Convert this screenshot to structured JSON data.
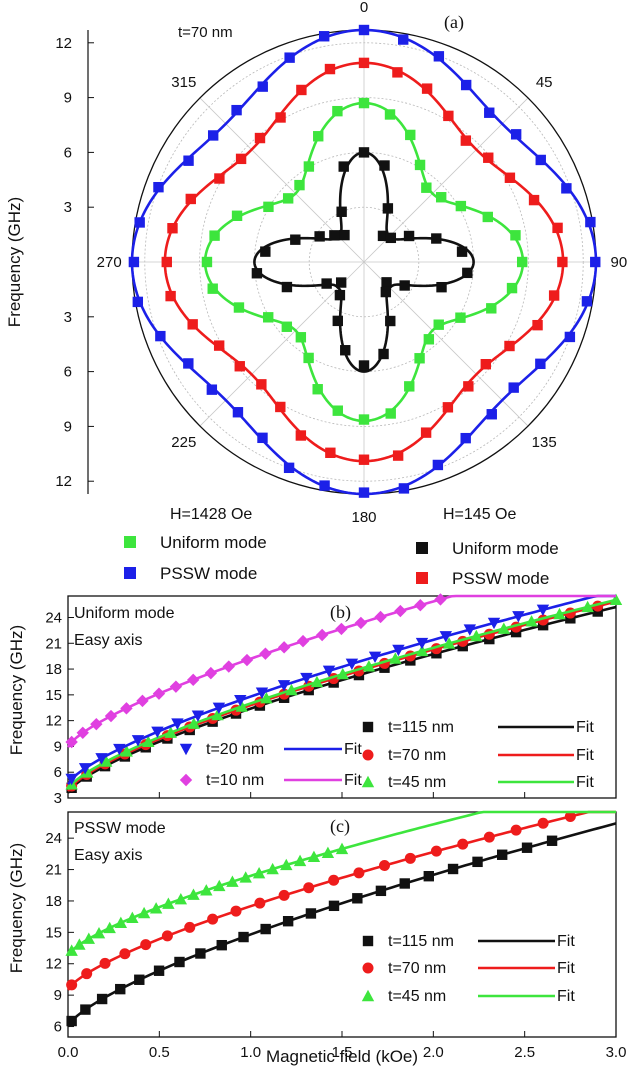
{
  "chart_data": [
    {
      "panel": "a",
      "type": "polar-scatter",
      "panel_label": "(a)",
      "ylabel": "Frequency (GHz)",
      "thickness_label": "t=70 nm",
      "angle_labels": [
        "0",
        "45",
        "90",
        "135",
        "180",
        "225",
        "270",
        "315"
      ],
      "radial_ticks": [
        "3",
        "6",
        "9",
        "12"
      ],
      "field_left": "H=1428 Oe",
      "field_right": "H=145 Oe",
      "rlim": [
        0,
        12.7
      ],
      "series": [
        {
          "name": "Uniform mode",
          "group": "left",
          "color": "#3de53d",
          "base": 7.0,
          "amp": 1.7,
          "harmonic": 4
        },
        {
          "name": "PSSW mode",
          "group": "left",
          "color": "#1c20e8",
          "base": 11.7,
          "amp": 1.0,
          "harmonic": 4
        },
        {
          "name": "Uniform mode",
          "group": "right",
          "color": "#111111",
          "lobe_max": 6.0,
          "lobe_min": 2.0,
          "harmonic": 4
        },
        {
          "name": "PSSW mode",
          "group": "right",
          "color": "#ee1c1c",
          "base": 9.8,
          "amp": 1.1,
          "harmonic": 4
        }
      ]
    },
    {
      "panel": "b",
      "type": "scatter",
      "panel_label": "(b)",
      "title_lines": [
        "Uniform mode",
        "Easy axis"
      ],
      "ylabel": "Frequency (GHz)",
      "xlim": [
        0,
        3.0
      ],
      "ylim": [
        3,
        26.5
      ],
      "yticks": [
        3,
        6,
        9,
        12,
        15,
        18,
        21,
        24
      ],
      "fit_label": "Fit",
      "series": [
        {
          "name": "t=115 nm",
          "marker": "square",
          "color": "#111111",
          "f0": 3.6,
          "a": 9.8,
          "xmax": 2.9
        },
        {
          "name": "t=70 nm",
          "marker": "circle",
          "color": "#ee1c1c",
          "f0": 3.8,
          "a": 10.0,
          "xmax": 2.9
        },
        {
          "name": "t=45 nm",
          "marker": "triangle",
          "color": "#3de53d",
          "f0": 4.0,
          "a": 10.0,
          "xmax": 3.0
        },
        {
          "name": "t=20 nm",
          "marker": "triangle-down",
          "color": "#1c20e8",
          "f0": 4.6,
          "a": 10.2,
          "xmax": 2.6
        },
        {
          "name": "t=10 nm",
          "marker": "diamond",
          "color": "#e040e0",
          "f0": 8.9,
          "a": 10.3,
          "xmax": 2.15
        }
      ]
    },
    {
      "panel": "c",
      "type": "scatter",
      "panel_label": "(c)",
      "title_lines": [
        "PSSW mode",
        "Easy axis"
      ],
      "ylabel": "Frequency (GHz)",
      "xlabel": "Magnetic field (kOe)",
      "xlim": [
        0,
        3.0
      ],
      "ylim": [
        5,
        26.5
      ],
      "yticks": [
        6,
        9,
        12,
        15,
        18,
        21,
        24
      ],
      "xticks": [
        "0.0",
        "0.5",
        "1.0",
        "1.5",
        "2.0",
        "2.5",
        "3.0"
      ],
      "fit_label": "Fit",
      "series": [
        {
          "name": "t=115 nm",
          "marker": "square",
          "color": "#111111",
          "f0": 6.0,
          "a": 8.8,
          "xmax": 2.65
        },
        {
          "name": "t=70 nm",
          "marker": "circle",
          "color": "#ee1c1c",
          "f0": 9.5,
          "a": 8.0,
          "xmax": 2.9
        },
        {
          "name": "t=45 nm",
          "marker": "triangle",
          "color": "#3de53d",
          "f0": 12.8,
          "a": 7.6,
          "xmax": 1.5
        }
      ]
    }
  ]
}
